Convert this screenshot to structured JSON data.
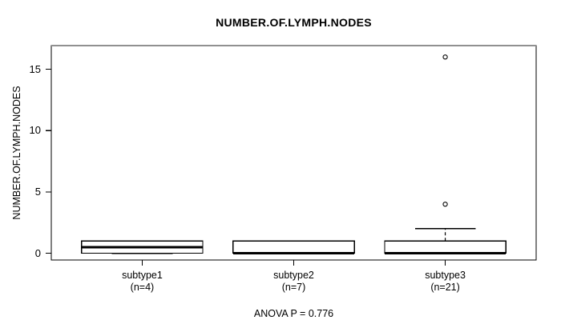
{
  "title": "NUMBER.OF.LYMPH.NODES",
  "chart_data": {
    "type": "boxplot",
    "title": "NUMBER.OF.LYMPH.NODES",
    "ylabel": "NUMBER.OF.LYMPH.NODES",
    "xlabel": "",
    "annotation": "ANOVA P = 0.776",
    "yticks": [
      0,
      5,
      10,
      15
    ],
    "ylim": [
      -0.55,
      16.93
    ],
    "xlim": [
      0.4,
      3.6
    ],
    "grid": false,
    "legend": false,
    "box_width": 0.8,
    "groups": [
      {
        "label": "subtype1",
        "sublabel": "(n=4)",
        "n": 4,
        "position": 1,
        "stats": {
          "lower_whisker": 0,
          "q1": 0,
          "median": 0.5,
          "q3": 1,
          "upper_whisker": 1
        },
        "outliers": []
      },
      {
        "label": "subtype2",
        "sublabel": "(n=7)",
        "n": 7,
        "position": 2,
        "stats": {
          "lower_whisker": 0,
          "q1": 0,
          "median": 0,
          "q3": 1,
          "upper_whisker": 1
        },
        "outliers": []
      },
      {
        "label": "subtype3",
        "sublabel": "(n=21)",
        "n": 21,
        "position": 3,
        "stats": {
          "lower_whisker": 0,
          "q1": 0,
          "median": 0,
          "q3": 1,
          "upper_whisker": 2
        },
        "outliers": [
          4,
          16
        ]
      }
    ],
    "colors": {
      "background": "#ffffff",
      "box_fill": "#ffffff",
      "line": "#000000",
      "frame_top": "#909090"
    }
  }
}
